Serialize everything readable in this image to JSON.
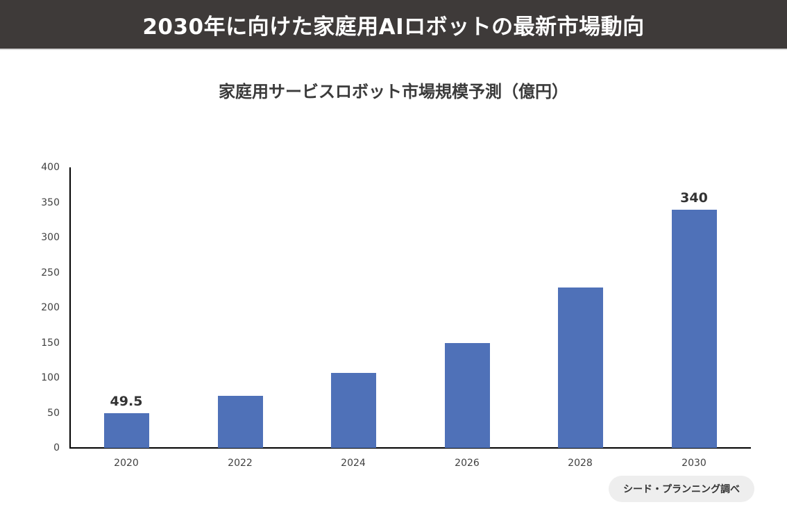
{
  "header": {
    "title": "2030年に向けた家庭用AIロボットの最新市場動向"
  },
  "chart": {
    "title": "家庭用サービスロボット市場規模予測（億円）",
    "source": "シード・プランニング調べ",
    "bar_color": "#4f71b8",
    "header_bg": "#3e3a39"
  },
  "chart_data": {
    "type": "bar",
    "title": "家庭用サービスロボット市場規模予測（億円）",
    "xlabel": "",
    "ylabel": "億円",
    "categories": [
      "2020",
      "2022",
      "2024",
      "2026",
      "2028",
      "2030"
    ],
    "values": [
      49.5,
      74,
      107,
      150,
      229,
      340
    ],
    "data_labels": {
      "2020": "49.5",
      "2030": "340"
    },
    "ylim": [
      0,
      400
    ],
    "yticks": [
      "0",
      "50",
      "100",
      "150",
      "200",
      "250",
      "300",
      "350",
      "400"
    ],
    "grid": false,
    "legend": "none",
    "annotation": "シード・プランニング調べ"
  }
}
